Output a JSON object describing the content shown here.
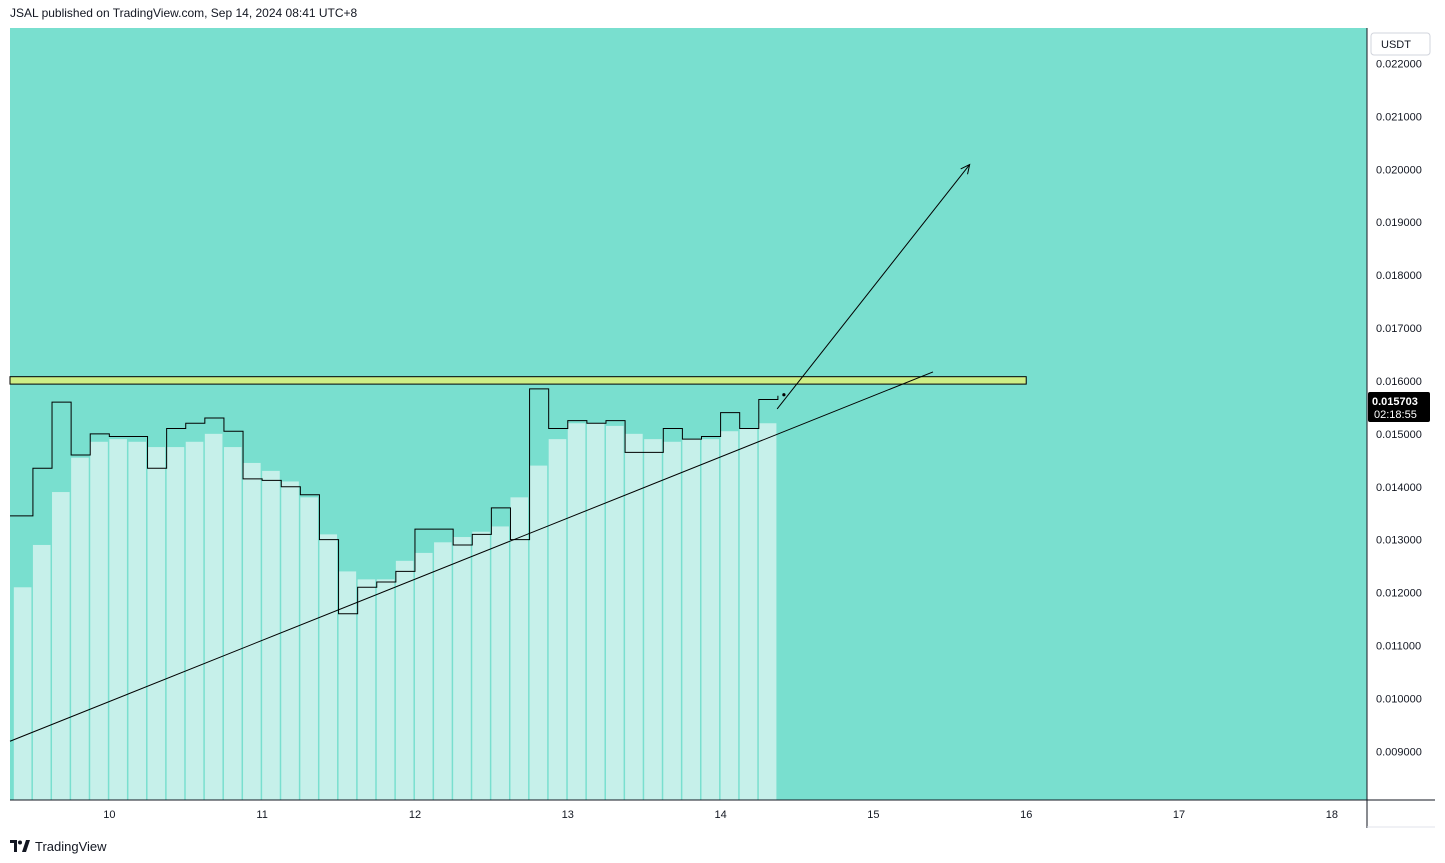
{
  "header": {
    "publisher_line": "JSAL published on TradingView.com, Sep 14, 2024 08:41 UTC+8"
  },
  "footer": {
    "brand": "TradingView"
  },
  "price_axis": {
    "currency": "USDT"
  },
  "colors": {
    "background": "#79dfcf",
    "bars": "#c6f0ea",
    "step_line": "#000000",
    "resistance_fill": "#cdee86",
    "resistance_border": "#000000",
    "trend_line": "#000000",
    "badge_bg": "#000000",
    "badge_text": "#ffffff"
  },
  "chart_data": {
    "type": "bar",
    "title": "",
    "xlabel": "",
    "ylabel": "",
    "x_ticks": [
      "10",
      "11",
      "12",
      "13",
      "14",
      "15",
      "16",
      "17",
      "18"
    ],
    "x_tick_values": [
      10,
      11,
      12,
      13,
      14,
      15,
      16,
      17,
      18
    ],
    "xlim": [
      9.35,
      18.23
    ],
    "y_ticks": [
      "0.022000",
      "0.021000",
      "0.020000",
      "0.019000",
      "0.018000",
      "0.017000",
      "0.016000",
      "0.015000",
      "0.014000",
      "0.013000",
      "0.012000",
      "0.011000",
      "0.010000",
      "0.009000"
    ],
    "y_tick_values": [
      0.022,
      0.021,
      0.02,
      0.019,
      0.018,
      0.017,
      0.016,
      0.015,
      0.014,
      0.013,
      0.012,
      0.011,
      0.01,
      0.009
    ],
    "ylim": [
      0.00808,
      0.02267
    ],
    "grid": false,
    "bar_start": 9.375,
    "bar_step": 0.125,
    "series": [
      {
        "type": "bar",
        "values": [
          0.0121,
          0.0129,
          0.0139,
          0.01455,
          0.01485,
          0.0149,
          0.01485,
          0.01475,
          0.01475,
          0.01485,
          0.015,
          0.01475,
          0.01445,
          0.0143,
          0.0141,
          0.0138,
          0.0131,
          0.0124,
          0.01225,
          0.01225,
          0.0126,
          0.01275,
          0.01295,
          0.01305,
          0.01315,
          0.01325,
          0.0138,
          0.0144,
          0.0149,
          0.0152,
          0.0152,
          0.01515,
          0.015,
          0.0149,
          0.01485,
          0.0149,
          0.0149,
          0.01505,
          0.0151,
          0.0152
        ]
      },
      {
        "type": "step",
        "values": [
          0.01345,
          0.01435,
          0.0156,
          0.0146,
          0.015,
          0.01495,
          0.01495,
          0.01435,
          0.0151,
          0.0152,
          0.0153,
          0.01505,
          0.01415,
          0.01412,
          0.014,
          0.01385,
          0.013,
          0.0116,
          0.0121,
          0.0122,
          0.0124,
          0.0132,
          0.0132,
          0.0129,
          0.0131,
          0.0136,
          0.013,
          0.01585,
          0.0151,
          0.01525,
          0.0152,
          0.01525,
          0.01465,
          0.01465,
          0.0151,
          0.0149,
          0.01495,
          0.0154,
          0.0151,
          0.01565
        ],
        "last_value": 0.01572
      }
    ],
    "annotations": {
      "resistance_zone": {
        "x_start": 9.35,
        "x_end": 16.0,
        "y_low": 0.01594,
        "y_high": 0.01608
      },
      "trend_line": {
        "x1": 9.35,
        "y1": 0.00919,
        "x2": 15.39,
        "y2": 0.01617
      },
      "arrow": {
        "x1": 14.37,
        "y1": 0.01547,
        "x2": 15.63,
        "y2": 0.02009
      }
    },
    "last_price_badge": {
      "value": "0.015703",
      "countdown": "02:18:55",
      "value_number": 0.015703
    }
  }
}
